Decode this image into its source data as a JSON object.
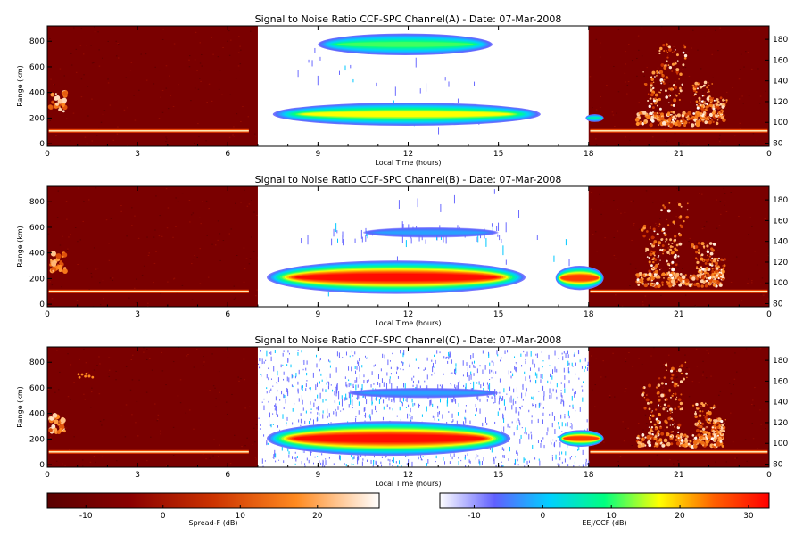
{
  "chart_data": {
    "type": "heatmap",
    "panels": [
      {
        "title": "Signal to Noise Ratio CCF-SPC Channel(A) - Date: 07-Mar-2008",
        "xlabel": "Local Time (hours)",
        "ylabel": "Range (km)",
        "xticks": [
          "0",
          "3",
          "6",
          "9",
          "12",
          "15",
          "18",
          "21",
          "0"
        ],
        "yticks_left": [
          "0",
          "200",
          "400",
          "600",
          "800"
        ],
        "yticks_right": [
          "80",
          "100",
          "120",
          "140",
          "160",
          "180"
        ],
        "xlim": [
          0,
          24
        ],
        "ylim_left": [
          -20,
          920
        ],
        "ylim_right": [
          77,
          193
        ],
        "white_window_hours": [
          7,
          18
        ],
        "blobs": [
          {
            "x0": 9.0,
            "x1": 14.8,
            "y0": 690,
            "y1": 860,
            "peak": 11,
            "noise": 0.05
          },
          {
            "x0": 7.5,
            "x1": 16.4,
            "y0": 140,
            "y1": 320,
            "peak": 17,
            "noise": 0.05
          },
          {
            "x0": 17.9,
            "x1": 18.5,
            "y0": 170,
            "y1": 230,
            "peak": 6,
            "noise": 0
          }
        ],
        "streaks": [
          {
            "x0": 8.0,
            "x1": 14.5,
            "y0": 120,
            "y1": 760,
            "n": 25,
            "dense": false
          }
        ]
      },
      {
        "title": "Signal to Noise Ratio CCF-SPC Channel(B) - Date: 07-Mar-2008",
        "xlabel": "Local Time (hours)",
        "ylabel": "Range (km)",
        "xticks": [
          "0",
          "3",
          "6",
          "9",
          "12",
          "15",
          "18",
          "21",
          "0"
        ],
        "yticks_left": [
          "0",
          "200",
          "400",
          "600",
          "800"
        ],
        "yticks_right": [
          "80",
          "100",
          "120",
          "140",
          "160",
          "180"
        ],
        "xlim": [
          0,
          24
        ],
        "ylim_left": [
          -20,
          920
        ],
        "ylim_right": [
          77,
          193
        ],
        "white_window_hours": [
          7,
          18
        ],
        "blobs": [
          {
            "x0": 7.3,
            "x1": 15.9,
            "y0": 80,
            "y1": 340,
            "peak": 32,
            "noise": 0.05
          },
          {
            "x0": 16.9,
            "x1": 18.5,
            "y0": 110,
            "y1": 300,
            "peak": 28,
            "noise": 0.08
          },
          {
            "x0": 10.5,
            "x1": 15.0,
            "y0": 520,
            "y1": 600,
            "peak": -2,
            "noise": 0.7
          }
        ],
        "streaks": [
          {
            "x0": 9.5,
            "x1": 15.5,
            "y0": 500,
            "y1": 650,
            "n": 50,
            "dense": false
          },
          {
            "x0": 7.5,
            "x1": 17.5,
            "y0": 40,
            "y1": 900,
            "n": 25,
            "dense": false
          }
        ]
      },
      {
        "title": "Signal to Noise Ratio CCF-SPC Channel(C) - Date: 07-Mar-2008",
        "xlabel": "Local Time (hours)",
        "ylabel": "Range (km)",
        "xticks": [
          "0",
          "3",
          "6",
          "9",
          "12",
          "15",
          "18",
          "21",
          "0"
        ],
        "yticks_left": [
          "0",
          "200",
          "400",
          "600",
          "800"
        ],
        "yticks_right": [
          "80",
          "100",
          "120",
          "140",
          "160",
          "180"
        ],
        "xlim": [
          0,
          24
        ],
        "ylim_left": [
          -20,
          920
        ],
        "ylim_right": [
          77,
          193
        ],
        "white_window_hours": [
          7,
          18
        ],
        "blobs": [
          {
            "x0": 7.3,
            "x1": 15.4,
            "y0": 70,
            "y1": 340,
            "peak": 32,
            "noise": 0.05
          },
          {
            "x0": 17.0,
            "x1": 18.5,
            "y0": 140,
            "y1": 270,
            "peak": 28,
            "noise": 0.08
          },
          {
            "x0": 10.0,
            "x1": 15.0,
            "y0": 520,
            "y1": 600,
            "peak": -2,
            "noise": 0.7
          }
        ],
        "streaks": [
          {
            "x0": 7.0,
            "x1": 18.0,
            "y0": -10,
            "y1": 900,
            "n": 1100,
            "dense": true
          },
          {
            "x0": 9.5,
            "x1": 15.5,
            "y0": 500,
            "y1": 650,
            "n": 60,
            "dense": false
          }
        ]
      }
    ],
    "colorbars": [
      {
        "label": "Spread-F (dB)",
        "range": [
          -15,
          28
        ],
        "ticks": [
          "-10",
          "0",
          "10",
          "20"
        ],
        "tick_values": [
          -10,
          0,
          10,
          20
        ]
      },
      {
        "label": "EEJ/CCF (dB)",
        "range": [
          -15,
          33
        ],
        "ticks": [
          "-10",
          "0",
          "10",
          "20",
          "30"
        ],
        "tick_values": [
          -10,
          0,
          10,
          20,
          30
        ]
      }
    ]
  },
  "colors": {
    "spread_f_background": "#7a0000",
    "eej_scale": [
      "#ffffff",
      "#6060ff",
      "#00d0ff",
      "#00ff80",
      "#ffff00",
      "#ff6000",
      "#ff0000"
    ],
    "spread_f_scale": [
      "#5a0000",
      "#8a0000",
      "#cc3300",
      "#ff8a20",
      "#ffffff"
    ]
  }
}
